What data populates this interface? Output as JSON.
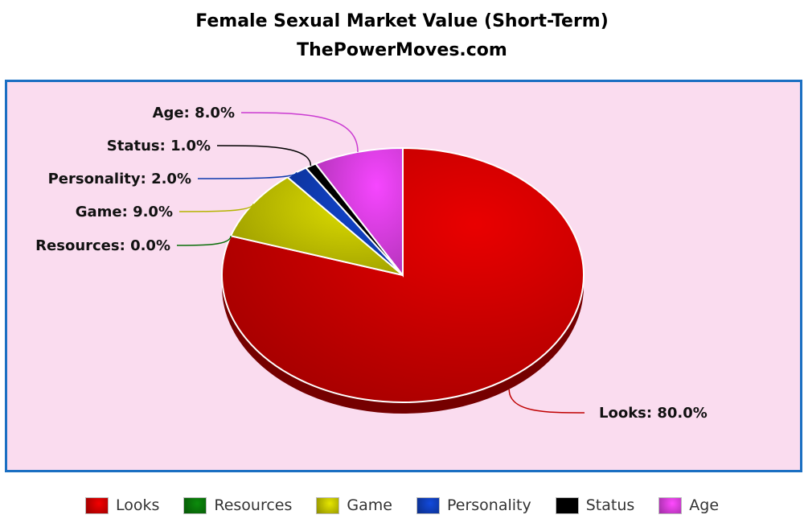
{
  "chart_data": {
    "type": "pie",
    "title": "Female Sexual Market Value (Short-Term)",
    "subtitle": "ThePowerMoves.com",
    "slices": [
      {
        "label": "Looks",
        "value": 80.0,
        "display": "Looks: 80.0%",
        "color": "#d40000"
      },
      {
        "label": "Resources",
        "value": 0.0,
        "display": "Resources: 0.0%",
        "color": "#0a7a0a"
      },
      {
        "label": "Game",
        "value": 9.0,
        "display": "Game: 9.0%",
        "color": "#c8c800"
      },
      {
        "label": "Personality",
        "value": 2.0,
        "display": "Personality: 2.0%",
        "color": "#1040c0"
      },
      {
        "label": "Status",
        "value": 1.0,
        "display": "Status: 1.0%",
        "color": "#000000"
      },
      {
        "label": "Age",
        "value": 8.0,
        "display": "Age: 8.0%",
        "color": "#e040e8"
      }
    ],
    "legend_position": "bottom",
    "background_color": "#fadcef",
    "border_color": "#1b6fc2"
  }
}
